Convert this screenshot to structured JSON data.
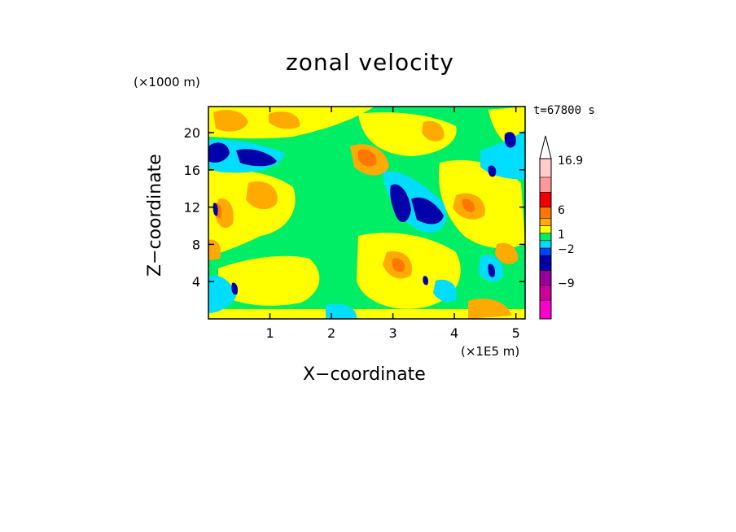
{
  "chart_data": {
    "type": "heatmap",
    "title": "zonal velocity",
    "xlabel": "X−coordinate",
    "ylabel": "Z−coordinate",
    "x_unit": "(×1E5 m)",
    "y_unit": "(×1000 m)",
    "annotation": "t=67800 s",
    "xlim": [
      0,
      5.15
    ],
    "ylim": [
      0,
      22.8
    ],
    "x_ticks": [
      1,
      2,
      3,
      4,
      5
    ],
    "y_ticks": [
      4,
      8,
      12,
      16,
      20
    ],
    "colorbar": {
      "labels": [
        {
          "text": "16.9",
          "value": 16.9
        },
        {
          "text": "6",
          "value": 6
        },
        {
          "text": "1",
          "value": 1
        },
        {
          "text": "−2",
          "value": -2
        },
        {
          "text": "−9",
          "value": -9
        }
      ],
      "colors": [
        "#ff00cc",
        "#cc0099",
        "#990099",
        "#0000aa",
        "#0044ff",
        "#00ddff",
        "#00ee66",
        "#ffff00",
        "#ffaa00",
        "#ff7700",
        "#ee0000",
        "#ff9999",
        "#ffcccc"
      ],
      "extend": "max"
    },
    "colors": {
      "strong_negative": "#0000aa",
      "weak_negative": "#00ddff",
      "near_zero": "#00ee66",
      "weak_positive": "#ffff00",
      "moderate_positive": "#ffaa00",
      "strong_positive": "#ff7700"
    }
  }
}
